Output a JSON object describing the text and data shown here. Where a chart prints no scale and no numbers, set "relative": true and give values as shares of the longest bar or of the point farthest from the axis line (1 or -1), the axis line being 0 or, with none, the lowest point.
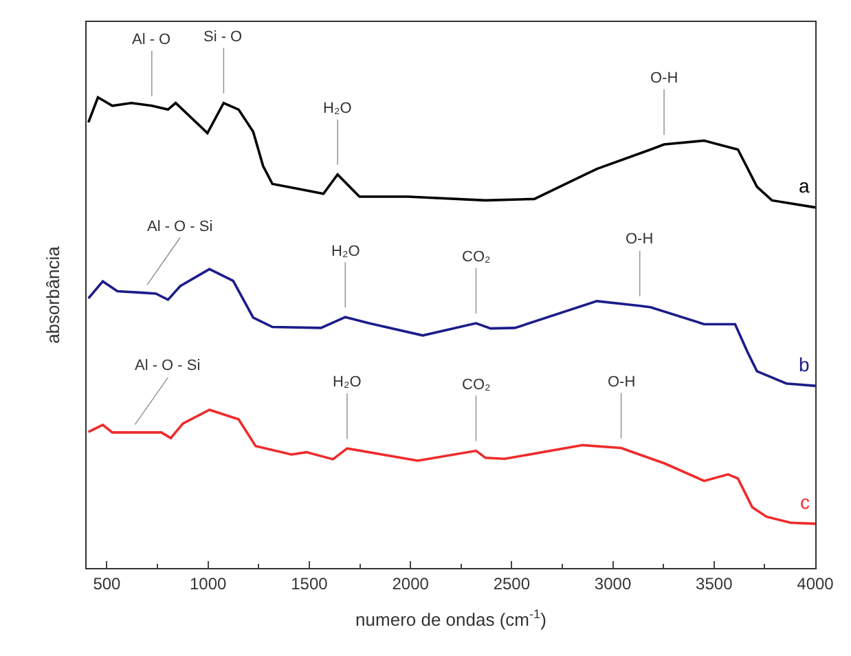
{
  "chart_data": {
    "type": "line",
    "relative": true,
    "xlabel": "numero de ondas (cm$^{-1}$)",
    "ylabel": "absorbância",
    "xlim": [
      400,
      4000
    ],
    "xticks": [
      500,
      1000,
      1500,
      2000,
      2500,
      3000,
      3500,
      4000
    ],
    "legend": false,
    "marker": "none",
    "line_style": "solid",
    "tick_labels": "x",
    "series": [
      {
        "name": "a",
        "color": "#000000",
        "x": [
          409,
          456,
          527,
          621,
          722,
          802,
          840,
          997,
          1077,
          1151,
          1223,
          1272,
          1318,
          1439,
          1570,
          1640,
          1748,
          1989,
          2371,
          2612,
          2921,
          3186,
          3253,
          3451,
          3618,
          3712,
          3786,
          4000
        ],
        "values": [
          0.947,
          1,
          0.982,
          0.988,
          0.982,
          0.974,
          0.988,
          0.924,
          0.988,
          0.974,
          0.927,
          0.854,
          0.816,
          0.806,
          0.795,
          0.836,
          0.789,
          0.789,
          0.781,
          0.784,
          0.848,
          0.889,
          0.9,
          0.908,
          0.889,
          0.81,
          0.781,
          0.766
        ]
      },
      {
        "name": "b",
        "color": "#1c1c8a",
        "x": [
          409,
          480,
          552,
          672,
          742,
          802,
          863,
          1007,
          1124,
          1223,
          1318,
          1558,
          1678,
          1795,
          2061,
          2324,
          2396,
          2516,
          2921,
          3133,
          3186,
          3451,
          3604,
          3665,
          3712,
          3857,
          4000
        ],
        "values": [
          0.573,
          0.609,
          0.588,
          0.585,
          0.583,
          0.57,
          0.599,
          0.635,
          0.61,
          0.532,
          0.512,
          0.51,
          0.533,
          0.52,
          0.494,
          0.52,
          0.509,
          0.51,
          0.567,
          0.557,
          0.554,
          0.518,
          0.518,
          0.459,
          0.418,
          0.392,
          0.387
        ]
      },
      {
        "name": "c",
        "color": "#f02a2a",
        "x": [
          409,
          480,
          527,
          612,
          769,
          816,
          876,
          1007,
          1151,
          1235,
          1412,
          1486,
          1617,
          1687,
          2036,
          2324,
          2371,
          2465,
          2851,
          3041,
          3256,
          3451,
          3569,
          3618,
          3689,
          3759,
          3879,
          4000
        ],
        "values": [
          0.289,
          0.304,
          0.288,
          0.288,
          0.288,
          0.276,
          0.307,
          0.336,
          0.316,
          0.259,
          0.241,
          0.246,
          0.231,
          0.254,
          0.228,
          0.249,
          0.234,
          0.232,
          0.261,
          0.255,
          0.222,
          0.185,
          0.199,
          0.19,
          0.129,
          0.109,
          0.096,
          0.094
        ]
      }
    ],
    "annotations": [
      {
        "text": "Al - O",
        "x": 722,
        "y": 0.982
      },
      {
        "text": "Si - O",
        "x": 1077,
        "y": 0.988
      },
      {
        "text": "H₂O",
        "x": 1640,
        "y": 0.836
      },
      {
        "text": "O-H",
        "x": 3253,
        "y": 0.9
      },
      {
        "text": "Al - O - Si",
        "x": 672,
        "y": 0.585
      },
      {
        "text": "H₂O",
        "x": 1678,
        "y": 0.533
      },
      {
        "text": "CO₂",
        "x": 2324,
        "y": 0.52
      },
      {
        "text": "O-H",
        "x": 3133,
        "y": 0.557
      },
      {
        "text": "Al - O - Si",
        "x": 612,
        "y": 0.288
      },
      {
        "text": "H₂O",
        "x": 1687,
        "y": 0.254
      },
      {
        "text": "CO₂",
        "x": 2324,
        "y": 0.249
      },
      {
        "text": "O-H",
        "x": 3041,
        "y": 0.255
      }
    ]
  }
}
